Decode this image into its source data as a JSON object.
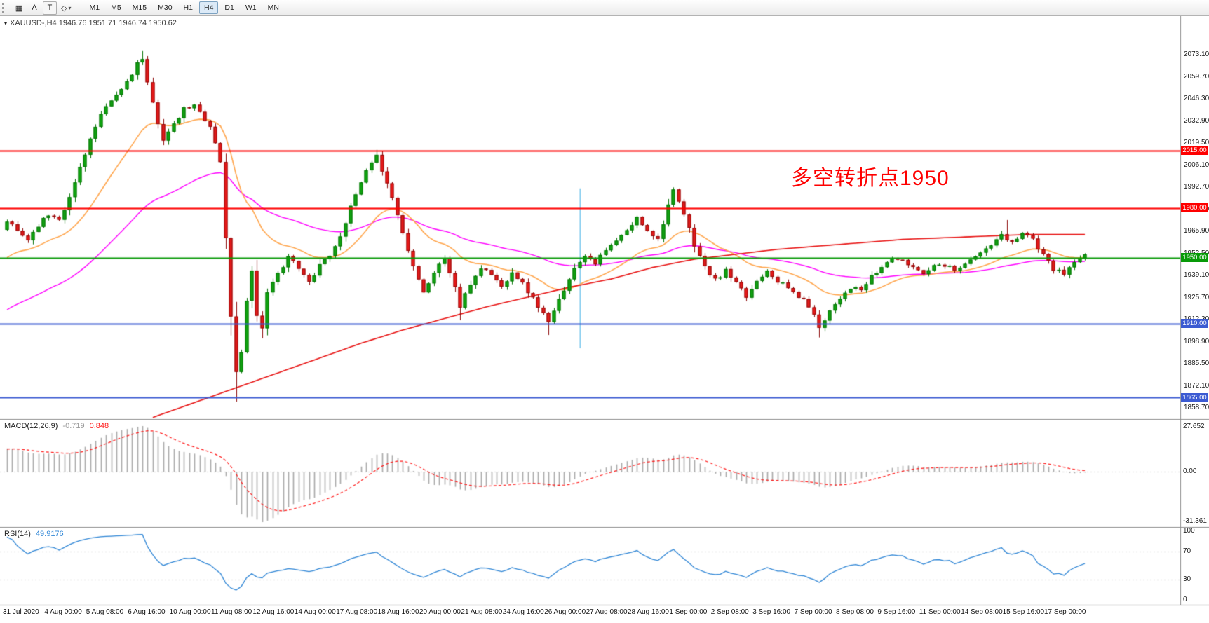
{
  "toolbar": {
    "icon_buttons": [
      {
        "name": "orders-grid",
        "glyph": "▦"
      },
      {
        "name": "cursor-a",
        "glyph": "A"
      },
      {
        "name": "text-tool",
        "glyph": "T"
      },
      {
        "name": "shapes-tool",
        "glyph": "◇"
      }
    ],
    "dropdown_arrow": "▾",
    "timeframes": [
      "M1",
      "M5",
      "M15",
      "M30",
      "H1",
      "H4",
      "D1",
      "W1",
      "MN"
    ],
    "active_timeframe": "H4"
  },
  "chart": {
    "dropdown_icon": "▾",
    "title_symbol": "XAUUSD-,H4",
    "title_ohlc": "1946.76 1951.71 1946.74 1950.62",
    "annotation": {
      "text": "多空转折点1950",
      "color": "#fe0000"
    }
  },
  "chart_data": {
    "type": "candlestick",
    "symbol": "XAUUSD-",
    "timeframe": "H4",
    "ohlc_display": {
      "open": "1946.76",
      "high": "1951.71",
      "low": "1946.74",
      "close": "1950.62"
    },
    "bars": 208,
    "seed": 11,
    "prehistory": {
      "bars": 80,
      "start": 1812,
      "end": 1968
    },
    "price_axis": {
      "max": 2096.5,
      "min": 1852.0,
      "labels": [
        "2073.10",
        "2059.70",
        "2046.30",
        "2032.90",
        "2019.50",
        "2006.10",
        "1992.70",
        "1979.30",
        "1965.90",
        "1952.50",
        "1939.10",
        "1925.70",
        "1912.30",
        "1898.90",
        "1885.50",
        "1872.10",
        "1858.70"
      ]
    },
    "time_axis": {
      "labels": [
        "31 Jul 2020",
        "4 Aug 00:00",
        "5 Aug 08:00",
        "6 Aug 16:00",
        "10 Aug 00:00",
        "11 Aug 08:00",
        "12 Aug 16:00",
        "14 Aug 00:00",
        "17 Aug 08:00",
        "18 Aug 16:00",
        "20 Aug 00:00",
        "21 Aug 08:00",
        "24 Aug 16:00",
        "26 Aug 00:00",
        "27 Aug 08:00",
        "28 Aug 16:00",
        "1 Sep 00:00",
        "2 Sep 08:00",
        "3 Sep 16:00",
        "7 Sep 00:00",
        "8 Sep 08:00",
        "9 Sep 16:00",
        "11 Sep 00:00",
        "14 Sep 08:00",
        "15 Sep 16:00",
        "17 Sep 00:00"
      ]
    },
    "levels": [
      {
        "price": 2015.0,
        "label": "2015.00",
        "color": "#fe0000",
        "width": 2
      },
      {
        "price": 1980.0,
        "label": "1980.00",
        "color": "#fe0000",
        "width": 2
      },
      {
        "price": 1950.0,
        "label": "1950.00",
        "color": "#089a08",
        "width": 2
      },
      {
        "price": 1910.0,
        "label": "1910.00",
        "color": "#3c5bd2",
        "width": 2
      },
      {
        "price": 1865.0,
        "label": "1865.00",
        "color": "#3c5bd2",
        "width": 2
      }
    ],
    "vertical_separator": {
      "bar": 110,
      "from_price": 1992,
      "to_price": 1895,
      "color": "#76c7ee"
    },
    "waypoints": [
      [
        0,
        1972
      ],
      [
        2,
        1966
      ],
      [
        4,
        1961
      ],
      [
        6,
        1970
      ],
      [
        8,
        1976
      ],
      [
        10,
        1974
      ],
      [
        12,
        1986
      ],
      [
        14,
        2005
      ],
      [
        16,
        2022
      ],
      [
        18,
        2036
      ],
      [
        20,
        2045
      ],
      [
        22,
        2052
      ],
      [
        24,
        2062
      ],
      [
        25,
        2068
      ],
      [
        26,
        2070
      ],
      [
        27,
        2055
      ],
      [
        29,
        2032
      ],
      [
        30,
        2022
      ],
      [
        32,
        2030
      ],
      [
        34,
        2040
      ],
      [
        36,
        2042
      ],
      [
        38,
        2034
      ],
      [
        39,
        2030
      ],
      [
        41,
        2008
      ],
      [
        43,
        1915
      ],
      [
        44,
        1880
      ],
      [
        45,
        1893
      ],
      [
        46,
        1925
      ],
      [
        47,
        1942
      ],
      [
        48,
        1915
      ],
      [
        49,
        1908
      ],
      [
        50,
        1928
      ],
      [
        52,
        1940
      ],
      [
        54,
        1951
      ],
      [
        56,
        1943
      ],
      [
        58,
        1935
      ],
      [
        60,
        1946
      ],
      [
        62,
        1952
      ],
      [
        63,
        1956
      ],
      [
        65,
        1972
      ],
      [
        67,
        1988
      ],
      [
        69,
        2002
      ],
      [
        71,
        2011
      ],
      [
        73,
        1996
      ],
      [
        75,
        1976
      ],
      [
        77,
        1954
      ],
      [
        79,
        1938
      ],
      [
        80,
        1929
      ],
      [
        82,
        1941
      ],
      [
        84,
        1950
      ],
      [
        86,
        1932
      ],
      [
        87,
        1920
      ],
      [
        89,
        1934
      ],
      [
        91,
        1944
      ],
      [
        93,
        1940
      ],
      [
        95,
        1932
      ],
      [
        97,
        1942
      ],
      [
        99,
        1934
      ],
      [
        101,
        1925
      ],
      [
        103,
        1916
      ],
      [
        104,
        1910
      ],
      [
        106,
        1924
      ],
      [
        108,
        1938
      ],
      [
        110,
        1948
      ],
      [
        111,
        1952
      ],
      [
        113,
        1947
      ],
      [
        115,
        1954
      ],
      [
        117,
        1960
      ],
      [
        119,
        1966
      ],
      [
        121,
        1974
      ],
      [
        123,
        1967
      ],
      [
        125,
        1961
      ],
      [
        127,
        1982
      ],
      [
        128,
        1990
      ],
      [
        130,
        1976
      ],
      [
        132,
        1958
      ],
      [
        134,
        1944
      ],
      [
        136,
        1936
      ],
      [
        138,
        1942
      ],
      [
        140,
        1934
      ],
      [
        142,
        1926
      ],
      [
        144,
        1936
      ],
      [
        146,
        1943
      ],
      [
        148,
        1936
      ],
      [
        151,
        1929
      ],
      [
        154,
        1921
      ],
      [
        156,
        1908
      ],
      [
        158,
        1918
      ],
      [
        160,
        1926
      ],
      [
        162,
        1932
      ],
      [
        164,
        1930
      ],
      [
        166,
        1938
      ],
      [
        168,
        1944
      ],
      [
        170,
        1950
      ],
      [
        173,
        1946
      ],
      [
        176,
        1941
      ],
      [
        179,
        1947
      ],
      [
        182,
        1943
      ],
      [
        185,
        1948
      ],
      [
        188,
        1955
      ],
      [
        191,
        1963
      ],
      [
        193,
        1959
      ],
      [
        195,
        1966
      ],
      [
        197,
        1961
      ],
      [
        199,
        1951
      ],
      [
        201,
        1943
      ],
      [
        203,
        1940
      ],
      [
        205,
        1947
      ],
      [
        207,
        1950.6
      ]
    ],
    "wick_overrides": [
      [
        26,
        "high",
        2075.3
      ],
      [
        44,
        "low",
        1862.6
      ],
      [
        49,
        "low",
        1901.0
      ],
      [
        71,
        "high",
        2015.4
      ],
      [
        87,
        "low",
        1912.0
      ],
      [
        104,
        "low",
        1903.0
      ],
      [
        128,
        "high",
        1992.6
      ],
      [
        156,
        "low",
        1901.5
      ],
      [
        192,
        "high",
        1972.8
      ]
    ],
    "moving_averages": {
      "fast_period": 20,
      "mid_period": 55,
      "slow_red_waypoints": [
        [
          28,
          1853
        ],
        [
          36,
          1862
        ],
        [
          44,
          1871
        ],
        [
          52,
          1880
        ],
        [
          60,
          1889
        ],
        [
          68,
          1898
        ],
        [
          76,
          1906
        ],
        [
          84,
          1913
        ],
        [
          92,
          1920
        ],
        [
          100,
          1926
        ],
        [
          108,
          1932
        ],
        [
          116,
          1937
        ],
        [
          124,
          1944
        ],
        [
          132,
          1949
        ],
        [
          140,
          1952
        ],
        [
          148,
          1955
        ],
        [
          156,
          1957
        ],
        [
          164,
          1959
        ],
        [
          172,
          1961
        ],
        [
          180,
          1962
        ],
        [
          188,
          1963
        ],
        [
          196,
          1964
        ],
        [
          207,
          1964
        ]
      ]
    },
    "macd": {
      "label": "MACD(12,26,9)",
      "hist_value": "-0.719",
      "signal_value": "0.848",
      "scale_labels": [
        "27.652",
        "0.00",
        "-31.361"
      ]
    },
    "rsi": {
      "label": "RSI(14)",
      "value": "49.9176",
      "scale_labels": [
        "100",
        "70",
        "30",
        "0"
      ],
      "guides": [
        70,
        30
      ]
    },
    "colors": {
      "up_body": "#10a310",
      "up_border": "#067306",
      "down_body": "#e61919",
      "down_border": "#8e0b0b",
      "ma_fast_orange": "#ffa64d",
      "ma_mid_magenta": "#ff00ff",
      "ma_slow_red": "#e81212",
      "macd_hist": "#a9a9a9",
      "macd_signal": "#ff1a1a",
      "rsi_line": "#2f86d6",
      "guide": "#bfbfbf",
      "panel_border": "#8c8c8c",
      "scale_text": "#1a1a1a"
    }
  }
}
